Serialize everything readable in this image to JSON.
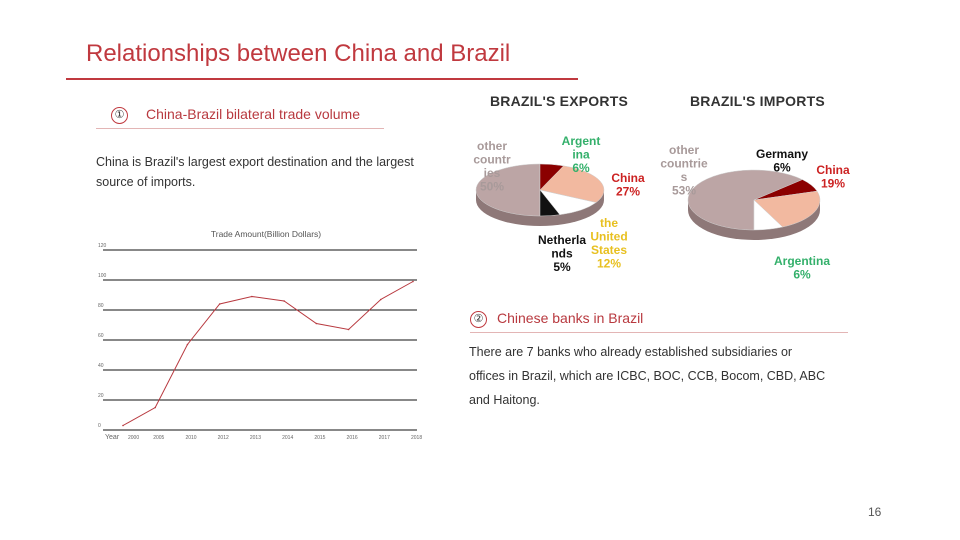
{
  "title": "Relationships between China and Brazil",
  "section1": {
    "number": "①",
    "heading": "China-Brazil bilateral trade volume",
    "body": "China is Brazil's largest export destination and the largest source of imports."
  },
  "section2": {
    "number": "②",
    "heading": "Chinese banks in Brazil",
    "body": "There are 7 banks who already established subsidiaries or offices in Brazil, which are ICBC, BOC, CCB, Bocom, CBD, ABC and Haitong."
  },
  "page_number": "16",
  "colors": {
    "accent": "#c0393f",
    "line": "#b8393f",
    "pie_grey": "#bca5a5",
    "pie_red": "#8b0000",
    "pie_peach": "#f2b9a0",
    "pie_black": "#111111",
    "pie_white": "#ffffff",
    "label_grey": "#a89a9a",
    "label_green": "#34b06b",
    "label_yellow": "#e8c020",
    "label_red": "#cc2222",
    "label_salmon": "#e08070",
    "label_black": "#111111"
  },
  "chart_data": [
    {
      "type": "line",
      "title": "Trade Amount(Billion Dollars)",
      "xlabel": "Year",
      "categories": [
        "2000",
        "2005",
        "2010",
        "2012",
        "2013",
        "2014",
        "2015",
        "2016",
        "2017",
        "2018"
      ],
      "y_ticks": [
        "0",
        "20",
        "40",
        "60",
        "80",
        "100",
        "120"
      ],
      "ylim": [
        0,
        120
      ],
      "series": [
        {
          "name": "Trade Amount",
          "values": [
            3,
            15,
            57,
            84,
            89,
            86,
            71,
            67,
            87,
            99
          ]
        }
      ]
    },
    {
      "type": "pie",
      "title": "BRAZIL'S EXPORTS",
      "slices": [
        {
          "label": "other countr ies",
          "value": 50,
          "value_text": "50%",
          "color": "#bca5a5",
          "text_color": "#a89a9a"
        },
        {
          "label": "Argent ina",
          "value": 6,
          "value_text": "6%",
          "color": "#8b0000",
          "text_color": "#34b06b"
        },
        {
          "label": "China",
          "value": 27,
          "value_text": "27%",
          "color": "#f2b9a0",
          "text_color": "#cc2222"
        },
        {
          "label": "the United States",
          "value": 12,
          "value_text": "12%",
          "color": "#ffffff",
          "text_color": "#e8c020"
        },
        {
          "label": "Netherla nds",
          "value": 5,
          "value_text": "5%",
          "color": "#111111",
          "text_color": "#111111"
        }
      ]
    },
    {
      "type": "pie",
      "title": "BRAZIL'S IMPORTS",
      "slices": [
        {
          "label": "other countrie s",
          "value": 53,
          "value_text": "53%",
          "color": "#bca5a5",
          "text_color": "#a89a9a"
        },
        {
          "label": "Germany",
          "value": 6,
          "value_text": "6%",
          "color": "#8b0000",
          "text_color": "#111111"
        },
        {
          "label": "China",
          "value": 19,
          "value_text": "19%",
          "color": "#f2b9a0",
          "text_color": "#cc2222"
        },
        {
          "label": "Argentina",
          "value": 6,
          "value_text": "6%",
          "color": "#ffffff",
          "text_color": "#34b06b"
        }
      ]
    }
  ]
}
